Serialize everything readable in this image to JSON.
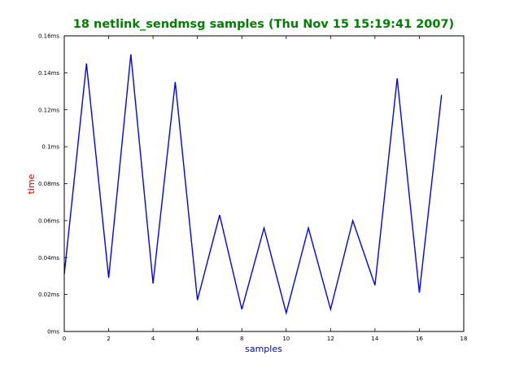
{
  "chart_data": {
    "type": "line",
    "title": "18 netlink_sendmsg samples (Thu Nov 15 15:19:41 2007)",
    "xlabel": "samples",
    "ylabel": "time",
    "xlim": [
      0,
      18
    ],
    "ylim": [
      0,
      0.16
    ],
    "x_ticks": [
      0,
      2,
      4,
      6,
      8,
      10,
      12,
      14,
      16,
      18
    ],
    "x_tick_labels": [
      "0",
      "2",
      "4",
      "6",
      "8",
      "10",
      "12",
      "14",
      "16",
      "18"
    ],
    "y_ticks": [
      0,
      0.02,
      0.04,
      0.06,
      0.08,
      0.1,
      0.12,
      0.14,
      0.16
    ],
    "y_tick_labels": [
      "0ms",
      "0.02ms",
      "0.04ms",
      "0.06ms",
      "0.08ms",
      "0.1ms",
      "0.12ms",
      "0.14ms",
      "0.16ms"
    ],
    "grid": false,
    "series": [
      {
        "x": [
          0,
          1,
          2,
          3,
          4,
          5,
          6,
          7,
          8,
          9,
          10,
          11,
          12,
          13,
          14,
          15,
          16,
          17
        ],
        "values": [
          0.031,
          0.145,
          0.029,
          0.15,
          0.026,
          0.135,
          0.017,
          0.063,
          0.012,
          0.056,
          0.01,
          0.056,
          0.012,
          0.06,
          0.025,
          0.137,
          0.021,
          0.128
        ],
        "color": "#0000ff"
      }
    ],
    "colors": {
      "title": "#008000",
      "xlabel": "#0000cc",
      "ylabel": "#cc0000",
      "axes": "#000000"
    }
  }
}
